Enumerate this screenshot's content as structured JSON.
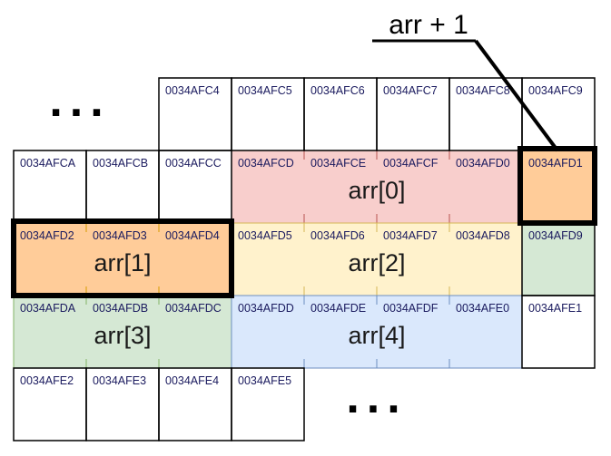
{
  "title_label": "arr + 1",
  "ellipsis_top": "...",
  "ellipsis_bottom": "...",
  "rows": [
    [
      "",
      "",
      "0034AFC4",
      "0034AFC5",
      "0034AFC6",
      "0034AFC7",
      "0034AFC8",
      "0034AFC9"
    ],
    [
      "0034AFCA",
      "0034AFCB",
      "0034AFCC",
      "0034AFCD",
      "0034AFCE",
      "0034AFCF",
      "0034AFD0",
      "0034AFD1"
    ],
    [
      "0034AFD2",
      "0034AFD3",
      "0034AFD4",
      "0034AFD5",
      "0034AFD6",
      "0034AFD7",
      "0034AFD8",
      "0034AFD9"
    ],
    [
      "0034AFDA",
      "0034AFDB",
      "0034AFDC",
      "0034AFDD",
      "0034AFDE",
      "0034AFDF",
      "0034AFE0",
      "0034AFE1"
    ],
    [
      "0034AFE2",
      "0034AFE3",
      "0034AFE4",
      "0034AFE5",
      "",
      "",
      "",
      ""
    ]
  ],
  "blocks": [
    {
      "label": "arr[0]",
      "fill": "#f8cecc",
      "stroke": "#b85450",
      "row": 1,
      "start": 3,
      "end": 6
    },
    {
      "label": "arr[1]",
      "fill": "#ffcc99",
      "stroke": "#d79b00",
      "row": 2,
      "start": 0,
      "end": 2
    },
    {
      "label": "arr[2]",
      "fill": "#fff2cc",
      "stroke": "#d6b656",
      "row": 2,
      "start": 3,
      "end": 6
    },
    {
      "label": "arr[3]",
      "fill": "#d5e8d4",
      "stroke": "#82b366",
      "row": 3,
      "start": 0,
      "end": 2
    },
    {
      "label": "arr[4]",
      "fill": "#dae8fc",
      "stroke": "#6c8ebf",
      "row": 3,
      "start": 3,
      "end": 6
    }
  ],
  "extra_fills": [
    {
      "row": 1,
      "col": 7,
      "fill": "#ffcc99"
    },
    {
      "row": 2,
      "col": 7,
      "fill": "#d5e8d4"
    }
  ],
  "colors": {
    "address_text": "#1a1a5e",
    "grid": "#000000",
    "highlight": "#000000"
  }
}
